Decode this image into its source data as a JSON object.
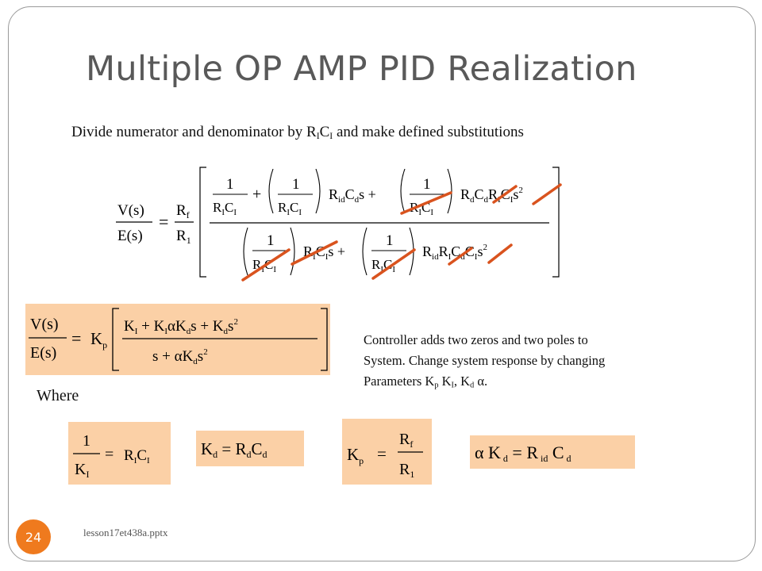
{
  "slide": {
    "title": "Multiple OP AMP  PID Realization",
    "intro": {
      "pre": "Divide numerator and denominator by R",
      "sub1": "I",
      "mid": "C",
      "sub2": "I",
      "post": " and make defined substitutions"
    },
    "description": {
      "line1": "Controller adds two zeros and two poles to",
      "line2": "System.  Change system response by changing",
      "line3_pre": "Parameters K",
      "line3_sub1": "p",
      "line3_mid1": " K",
      "line3_sub2": "I",
      "line3_mid2": ", K",
      "line3_sub3": "d",
      "line3_post": " α."
    },
    "where_label": "Where",
    "page_number": "24",
    "footer": "lesson17et438a.pptx",
    "colors": {
      "accent": "#ef7a1e",
      "highlight": "#fbd0a6",
      "strike": "#d9531e"
    }
  }
}
